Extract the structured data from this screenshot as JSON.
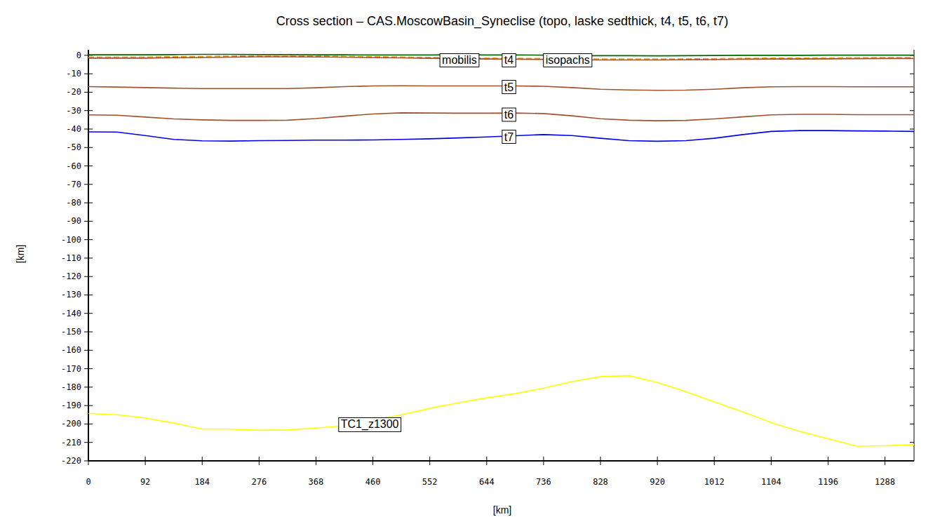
{
  "chart_data": {
    "type": "line",
    "title": "Cross section – CAS.MoscowBasin_Syneclise (topo, laske sedthick, t4, t5, t6, t7)",
    "xlabel": "[km]",
    "ylabel": "[km]",
    "x": [
      0,
      46,
      92,
      138,
      184,
      230,
      276,
      322,
      368,
      414,
      460,
      506,
      552,
      598,
      644,
      690,
      736,
      782,
      828,
      874,
      920,
      966,
      1012,
      1058,
      1104,
      1150,
      1196,
      1242,
      1288,
      1335
    ],
    "xlim": [
      0,
      1335
    ],
    "ylim": [
      -220,
      3
    ],
    "xticks": [
      0,
      92,
      184,
      276,
      368,
      460,
      552,
      644,
      736,
      828,
      920,
      1012,
      1104,
      1196,
      1288
    ],
    "yticks": [
      0,
      -10,
      -20,
      -30,
      -40,
      -50,
      -60,
      -70,
      -80,
      -90,
      -100,
      -110,
      -120,
      -130,
      -140,
      -150,
      -160,
      -170,
      -180,
      -190,
      -200,
      -210,
      -220
    ],
    "grid": false,
    "series": [
      {
        "name": "topo",
        "color": "#006400",
        "line_style": "solid",
        "values": [
          0.3,
          0.3,
          0.3,
          0.4,
          0.5,
          0.5,
          0.4,
          0.4,
          0.3,
          0.3,
          0.2,
          0.2,
          0.2,
          0.3,
          0.2,
          0.2,
          0.1,
          -0.3,
          -0.2,
          -0.2,
          -0.3,
          -0.2,
          -0.1,
          0,
          0,
          0,
          0.1,
          0.1,
          0.1,
          0.1
        ]
      },
      {
        "name": "laske sedthick",
        "color": "#e02020",
        "line_style": "dashed",
        "values": [
          -1.2,
          -1.2,
          -1.2,
          -1,
          -0.9,
          -0.7,
          -0.5,
          -0.5,
          -0.6,
          -0.8,
          -1,
          -1.2,
          -1.4,
          -1.6,
          -1.8,
          -1.9,
          -2,
          -2.2,
          -2.3,
          -2.3,
          -2.3,
          -2.2,
          -2.1,
          -1.9,
          -1.8,
          -1.8,
          -1.7,
          -1.6,
          -1.5,
          -1.5
        ]
      },
      {
        "name": "isopachs",
        "color": "#f0a020",
        "line_style": "dashed",
        "values": [
          -0.9,
          -0.9,
          -0.9,
          -0.7,
          -0.6,
          -0.4,
          -0.2,
          -0.2,
          -0.3,
          -0.5,
          -0.7,
          -0.9,
          -1.1,
          -1.3,
          -1.5,
          -1.6,
          -1.7,
          -1.9,
          -2,
          -2,
          -2,
          -1.9,
          -1.8,
          -1.6,
          -1.5,
          -1.5,
          -1.4,
          -1.3,
          -1.2,
          -1.2
        ]
      },
      {
        "name": "t4",
        "color": "#a0522d",
        "line_style": "solid",
        "values": [
          -1.5,
          -1.5,
          -1.5,
          -1.3,
          -1.2,
          -1,
          -0.8,
          -0.8,
          -0.9,
          -1,
          -1.2,
          -1.4,
          -1.6,
          -1.8,
          -2,
          -2.1,
          -2.2,
          -2.4,
          -2.5,
          -2.5,
          -2.5,
          -2.4,
          -2.3,
          -2.1,
          -2,
          -2,
          -1.9,
          -1.8,
          -1.7,
          -1.7
        ]
      },
      {
        "name": "t5",
        "color": "#a0522d",
        "line_style": "solid",
        "values": [
          -17,
          -17.2,
          -17.5,
          -17.8,
          -18,
          -18,
          -18,
          -18,
          -17.6,
          -17,
          -16.6,
          -16.5,
          -16.6,
          -16.6,
          -16.6,
          -16.6,
          -16.8,
          -17.5,
          -18.4,
          -18.8,
          -19,
          -18.9,
          -18.4,
          -17.6,
          -17.1,
          -17,
          -17,
          -17.1,
          -17.1,
          -17.1
        ]
      },
      {
        "name": "t6",
        "color": "#a0522d",
        "line_style": "solid",
        "values": [
          -32.3,
          -32.5,
          -33.5,
          -34.5,
          -35,
          -35.3,
          -35.3,
          -35.2,
          -34.3,
          -33,
          -31.8,
          -31.2,
          -31.3,
          -31.4,
          -31.4,
          -31.3,
          -31.6,
          -32.8,
          -34.4,
          -35.2,
          -35.5,
          -35.3,
          -34.5,
          -33.4,
          -32.3,
          -32,
          -32,
          -32.2,
          -32.2,
          -32.2
        ]
      },
      {
        "name": "t7",
        "color": "#0000ee",
        "line_style": "solid",
        "values": [
          -41.5,
          -41.6,
          -43.5,
          -45.6,
          -46.4,
          -46.5,
          -46.3,
          -46.2,
          -46,
          -46,
          -45.9,
          -45.6,
          -45.3,
          -44.8,
          -44.3,
          -43.6,
          -43,
          -43.5,
          -45,
          -46.3,
          -46.6,
          -46.3,
          -45,
          -43,
          -41.3,
          -40.8,
          -40.8,
          -41,
          -41.1,
          -41.3
        ]
      },
      {
        "name": "TC1_z1300",
        "color": "#ffff00",
        "line_style": "solid",
        "values": [
          -194.3,
          -195,
          -196.8,
          -199.5,
          -202.8,
          -202.8,
          -203.4,
          -203.2,
          -202.2,
          -201,
          -198,
          -195,
          -191.5,
          -188.5,
          -185.8,
          -183.5,
          -180.5,
          -177,
          -174.3,
          -173.8,
          -177.5,
          -182.5,
          -188,
          -193.5,
          -199.3,
          -204,
          -208,
          -212,
          -211.8,
          -211.2
        ]
      }
    ],
    "annotations": [
      {
        "text": "mobilis",
        "x": 600,
        "y": -2.5
      },
      {
        "text": "t4",
        "x": 680,
        "y": -2.5
      },
      {
        "text": "isopachs",
        "x": 775,
        "y": -2.5
      },
      {
        "text": "t5",
        "x": 680,
        "y": -17
      },
      {
        "text": "t6",
        "x": 680,
        "y": -32
      },
      {
        "text": "t7",
        "x": 680,
        "y": -44
      },
      {
        "text": "TC1_z1300",
        "x": 455,
        "y": -200
      }
    ]
  }
}
